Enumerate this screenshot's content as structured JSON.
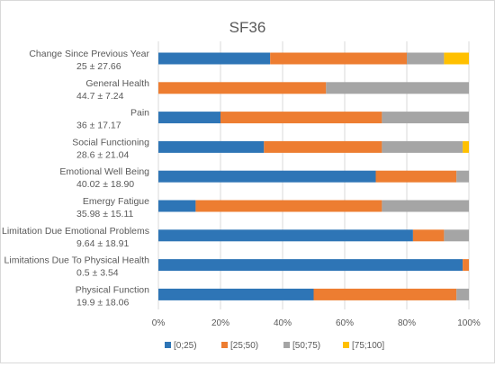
{
  "chart_data": {
    "type": "bar",
    "orientation": "horizontal",
    "stacked": "percent",
    "title": "SF36",
    "categories": [
      {
        "name": "Change Since Previous Year",
        "stat": "25 ± 27.66"
      },
      {
        "name": "General Health",
        "stat": "44.7 ± 7.24"
      },
      {
        "name": "Pain",
        "stat": "36 ± 17.17"
      },
      {
        "name": "Social Functioning",
        "stat": "28.6 ± 21.04"
      },
      {
        "name": "Emotional Well Being",
        "stat": "40.02 ± 18.90"
      },
      {
        "name": "Emergy Fatigue",
        "stat": "35.98 ± 15.11"
      },
      {
        "name": "Limitation Due Emotional Problems",
        "stat": "9.64 ± 18.91"
      },
      {
        "name": "Limitations Due To Physical Health",
        "stat": "0.5 ± 3.54"
      },
      {
        "name": "Physical Function",
        "stat": "19.9 ± 18.06"
      }
    ],
    "series": [
      {
        "name": "[0;25)",
        "color": "#2E75B6",
        "values": [
          36,
          0,
          20,
          34,
          70,
          12,
          82,
          98,
          50
        ]
      },
      {
        "name": "[25;50)",
        "color": "#ED7D31",
        "values": [
          44,
          54,
          52,
          38,
          26,
          60,
          10,
          2,
          46
        ]
      },
      {
        "name": "[50;75)",
        "color": "#A5A5A5",
        "values": [
          12,
          46,
          28,
          26,
          4,
          28,
          8,
          0,
          4
        ]
      },
      {
        "name": "[75;100]",
        "color": "#FFC000",
        "values": [
          8,
          0,
          0,
          2,
          0,
          0,
          0,
          0,
          0
        ]
      }
    ],
    "xlim": [
      0,
      100
    ],
    "xticks": [
      "0%",
      "20%",
      "40%",
      "60%",
      "80%",
      "100%"
    ],
    "grid": true,
    "legend_position": "bottom"
  }
}
